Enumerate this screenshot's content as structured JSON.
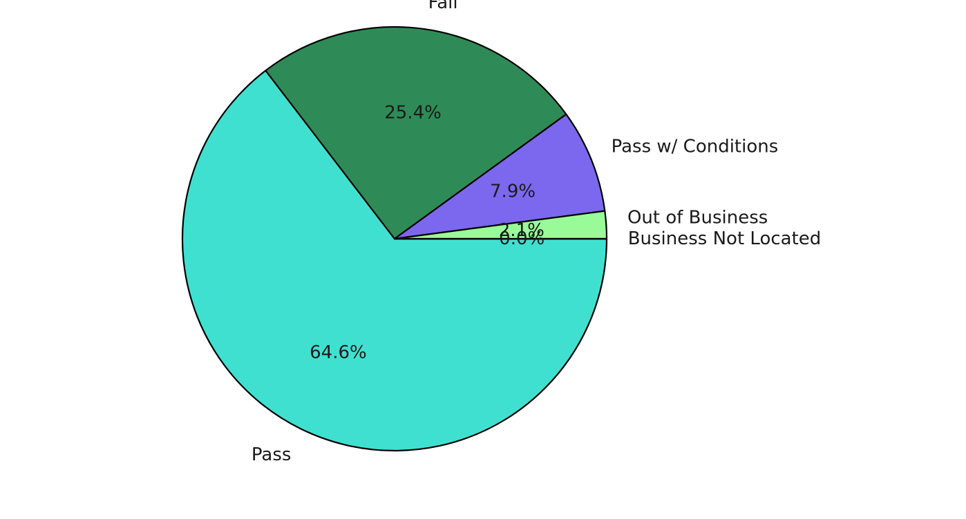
{
  "chart_data": {
    "type": "pie",
    "start_angle_deg": 0,
    "direction": "clockwise",
    "slices": [
      {
        "label": "Pass",
        "value": 64.6,
        "pct_label": "64.6%",
        "color": "#40E0D0"
      },
      {
        "label": "Fail",
        "value": 25.4,
        "pct_label": "25.4%",
        "color": "#2E8B57"
      },
      {
        "label": "Pass w/ Conditions",
        "value": 7.9,
        "pct_label": "7.9%",
        "color": "#7B68EE"
      },
      {
        "label": "Out of Business",
        "value": 2.1,
        "pct_label": "2.1%",
        "color": "#98FB98"
      },
      {
        "label": "Business Not Located",
        "value": 0.0,
        "pct_label": "0.0%",
        "color": "#FF0000"
      }
    ]
  }
}
